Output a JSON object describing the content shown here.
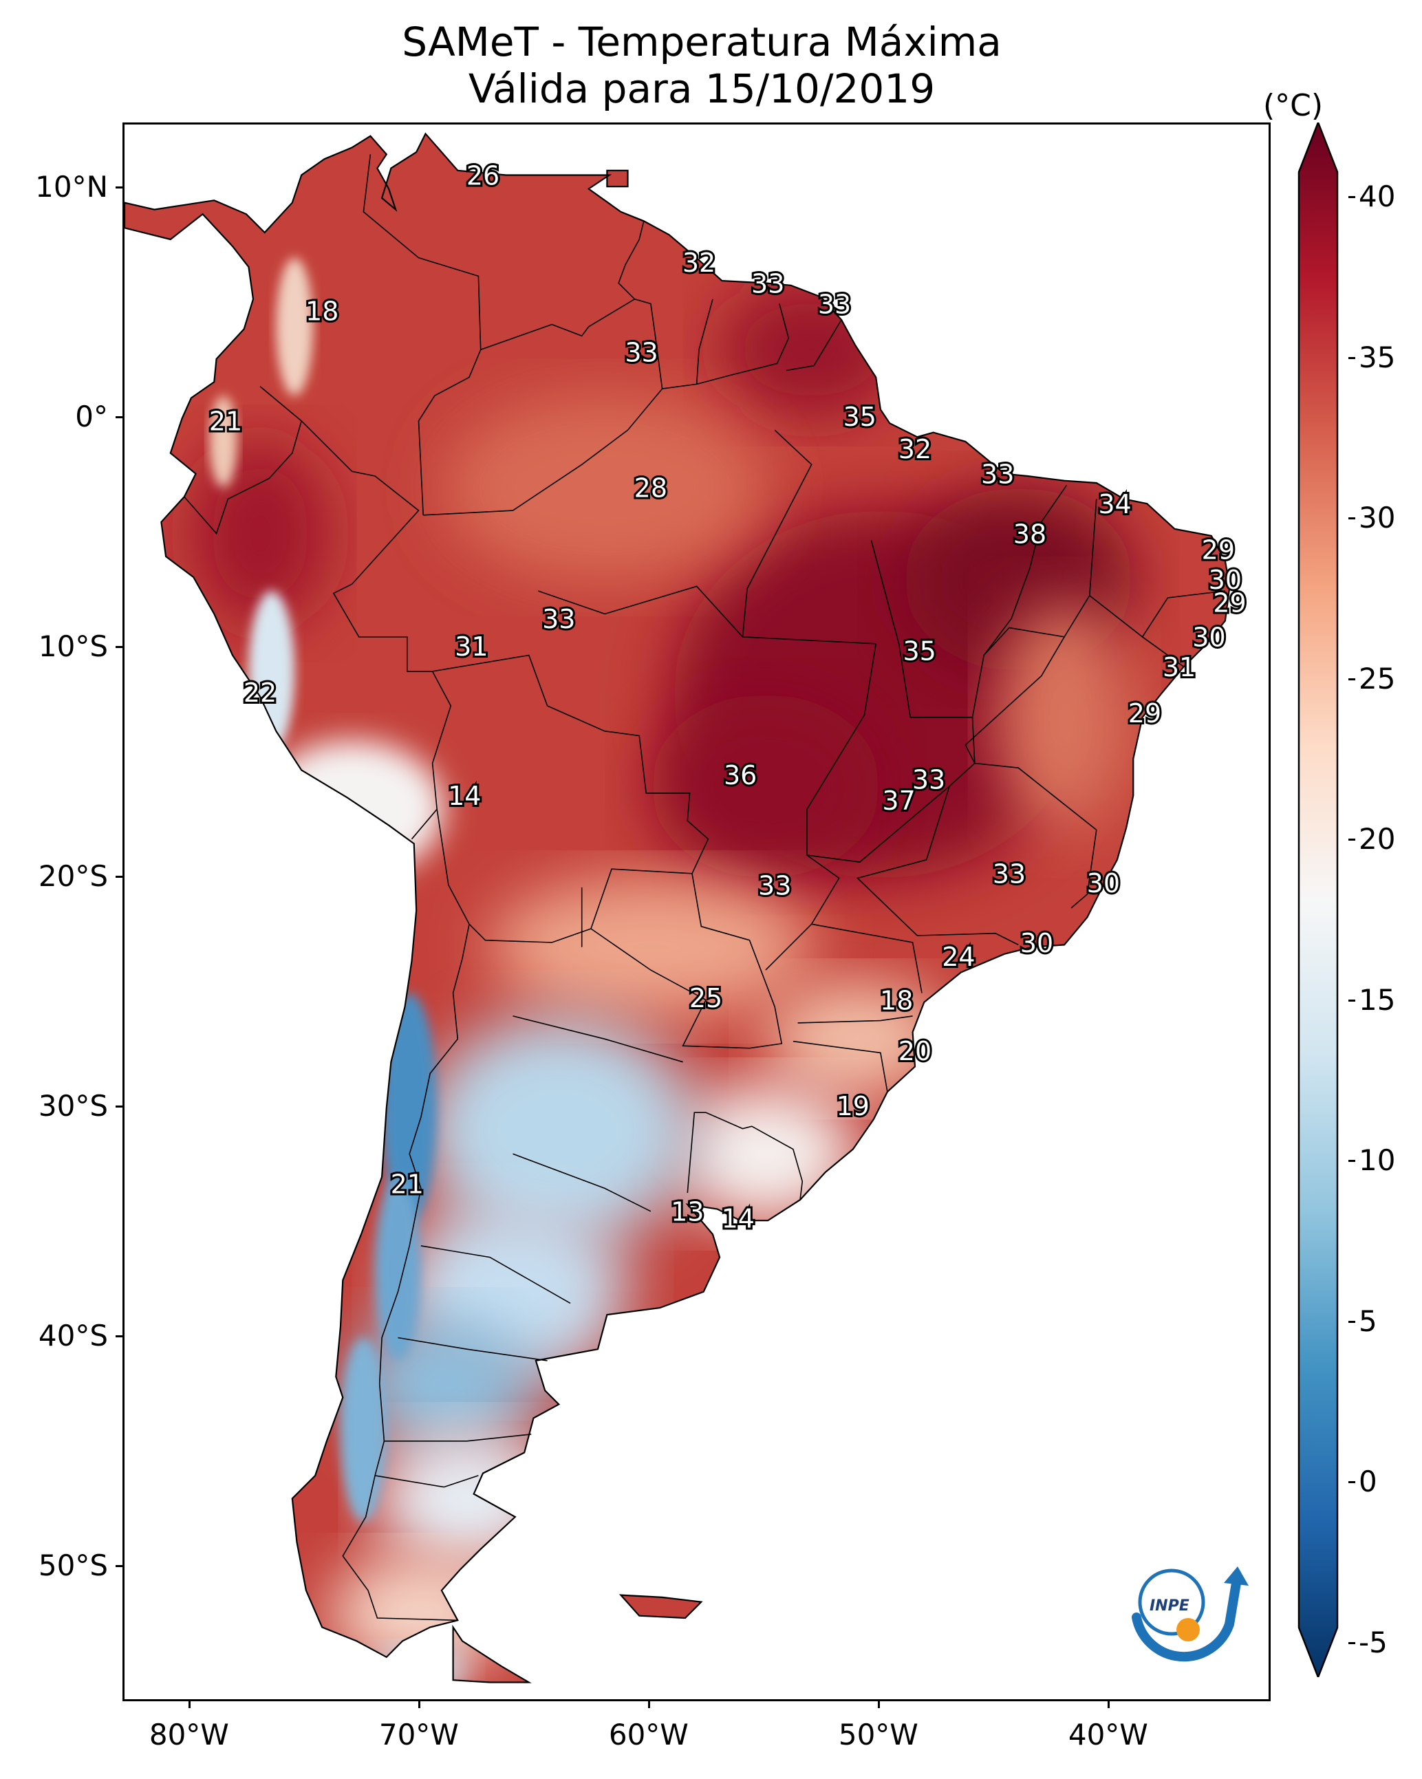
{
  "title": {
    "line1": "SAMeT - Temperatura Máxima",
    "line2": "Válida para 15/10/2019"
  },
  "axes": {
    "lat_ticks": [
      "10°N",
      "0°",
      "10°S",
      "20°S",
      "30°S",
      "40°S",
      "50°S"
    ],
    "lon_ticks": [
      "80°W",
      "70°W",
      "60°W",
      "50°W",
      "40°W"
    ]
  },
  "colorbar": {
    "unit": "(°C)",
    "ticks": [
      "40",
      "35",
      "30",
      "25",
      "20",
      "15",
      "10",
      "5",
      "0",
      "-5"
    ],
    "min": -7,
    "max": 40,
    "stops": [
      "#063264",
      "#2166ac",
      "#4393c3",
      "#92c5de",
      "#d1e5f0",
      "#f7f7f7",
      "#fddbc7",
      "#f4a582",
      "#d6604d",
      "#b2182b",
      "#67001f"
    ]
  },
  "map": {
    "logo_text": "INPE",
    "stations": [
      {
        "value": "26",
        "lon": -67.3,
        "lat": 10.5
      },
      {
        "value": "18",
        "lon": -74.3,
        "lat": 4.6
      },
      {
        "value": "32",
        "lon": -57.9,
        "lat": 6.7
      },
      {
        "value": "33",
        "lon": -54.9,
        "lat": 5.8
      },
      {
        "value": "33",
        "lon": -52.0,
        "lat": 4.9
      },
      {
        "value": "33",
        "lon": -60.4,
        "lat": 2.8
      },
      {
        "value": "21",
        "lon": -78.5,
        "lat": -0.2
      },
      {
        "value": "35",
        "lon": -50.9,
        "lat": 0.0
      },
      {
        "value": "32",
        "lon": -48.5,
        "lat": -1.4
      },
      {
        "value": "28",
        "lon": -60.0,
        "lat": -3.1
      },
      {
        "value": "33",
        "lon": -44.9,
        "lat": -2.5
      },
      {
        "value": "34",
        "lon": -39.8,
        "lat": -3.8
      },
      {
        "value": "38",
        "lon": -43.5,
        "lat": -5.1
      },
      {
        "value": "29",
        "lon": -35.3,
        "lat": -5.8
      },
      {
        "value": "30",
        "lon": -35.0,
        "lat": -7.1
      },
      {
        "value": "29",
        "lon": -34.8,
        "lat": -8.1
      },
      {
        "value": "33",
        "lon": -64.0,
        "lat": -8.8
      },
      {
        "value": "30",
        "lon": -35.7,
        "lat": -9.6
      },
      {
        "value": "31",
        "lon": -67.8,
        "lat": -10.0
      },
      {
        "value": "35",
        "lon": -48.3,
        "lat": -10.2
      },
      {
        "value": "31",
        "lon": -37.0,
        "lat": -10.9
      },
      {
        "value": "22",
        "lon": -77.0,
        "lat": -12.0
      },
      {
        "value": "29",
        "lon": -38.5,
        "lat": -12.9
      },
      {
        "value": "36",
        "lon": -56.1,
        "lat": -15.6
      },
      {
        "value": "33",
        "lon": -47.9,
        "lat": -15.8
      },
      {
        "value": "14",
        "lon": -68.1,
        "lat": -16.5
      },
      {
        "value": "37",
        "lon": -49.2,
        "lat": -16.7
      },
      {
        "value": "33",
        "lon": -44.4,
        "lat": -19.9
      },
      {
        "value": "30",
        "lon": -40.3,
        "lat": -20.3
      },
      {
        "value": "33",
        "lon": -54.6,
        "lat": -20.4
      },
      {
        "value": "30",
        "lon": -43.2,
        "lat": -22.9
      },
      {
        "value": "24",
        "lon": -46.6,
        "lat": -23.5
      },
      {
        "value": "25",
        "lon": -57.6,
        "lat": -25.3
      },
      {
        "value": "18",
        "lon": -49.3,
        "lat": -25.4
      },
      {
        "value": "20",
        "lon": -48.5,
        "lat": -27.6
      },
      {
        "value": "19",
        "lon": -51.2,
        "lat": -30.0
      },
      {
        "value": "21",
        "lon": -70.6,
        "lat": -33.4
      },
      {
        "value": "13",
        "lon": -58.4,
        "lat": -34.6
      },
      {
        "value": "14",
        "lon": -56.2,
        "lat": -34.9
      }
    ]
  }
}
